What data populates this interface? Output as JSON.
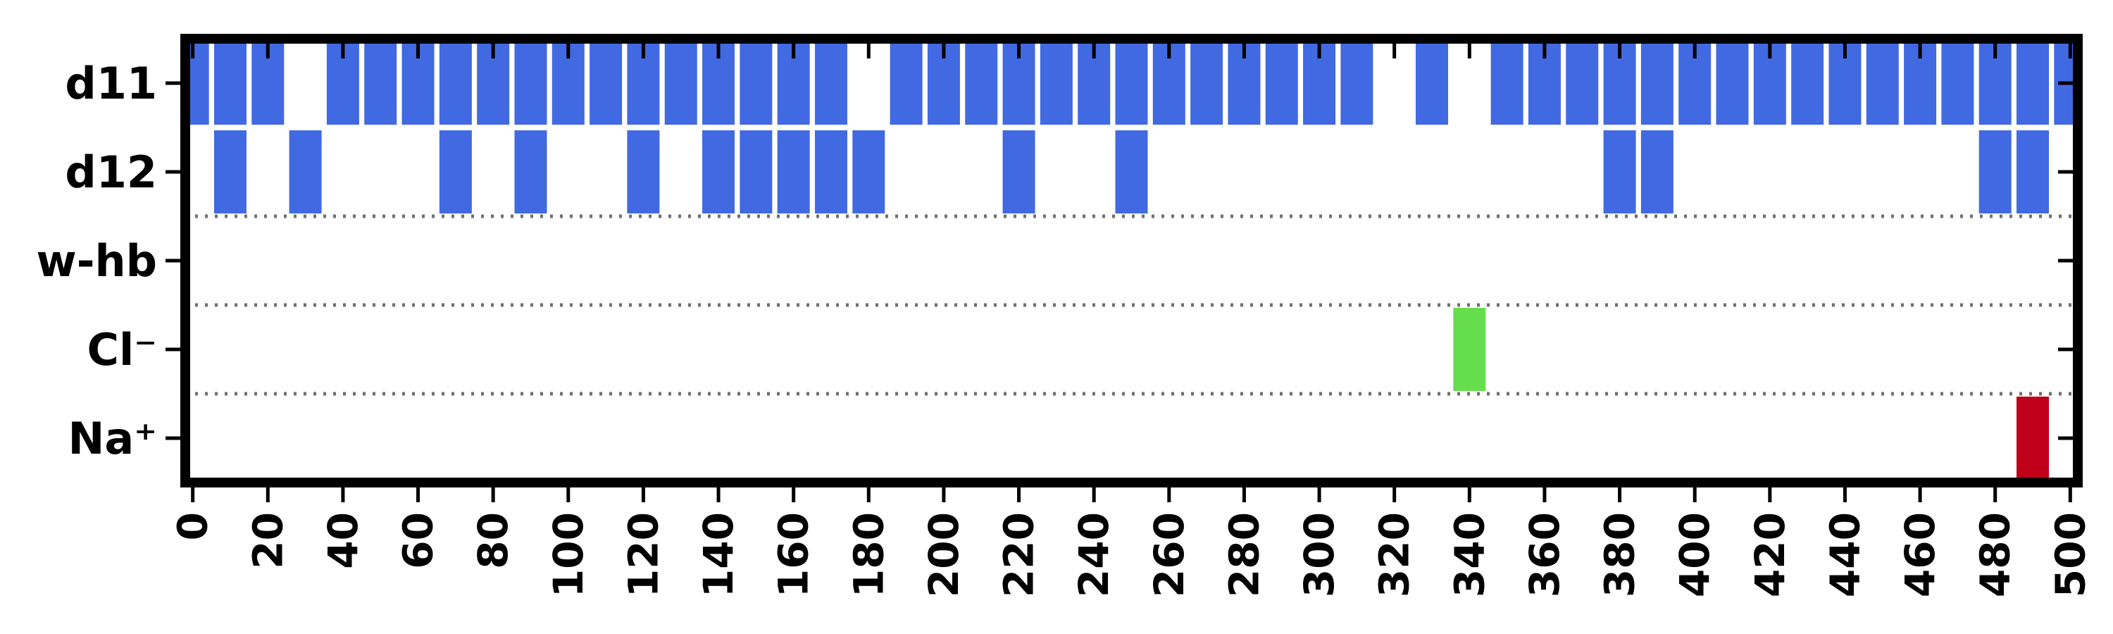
{
  "chart_data": {
    "type": "heatmap",
    "title": "",
    "xlabel": "",
    "ylabel": "",
    "xlim": [
      -2,
      502
    ],
    "x_ticks": [
      "0",
      "20",
      "40",
      "60",
      "80",
      "100",
      "120",
      "140",
      "160",
      "180",
      "200",
      "220",
      "240",
      "260",
      "280",
      "300",
      "320",
      "340",
      "360",
      "380",
      "400",
      "420",
      "440",
      "460",
      "480",
      "500"
    ],
    "rows": [
      "d11",
      "d12",
      "w-hb",
      "Cl⁻",
      "Na⁺"
    ],
    "row_separators_after": [
      1,
      2,
      3
    ],
    "grid": false,
    "legend": "none",
    "colors": {
      "hbond": "#4169e1",
      "water": "#4169e1",
      "chloride": "#66dd4c",
      "sodium": "#c00018",
      "separator": "#707070",
      "frame": "#000000"
    },
    "series": [
      {
        "name": "d11",
        "color_key": "hbond",
        "x": [
          0,
          10,
          20,
          40,
          50,
          60,
          70,
          80,
          90,
          100,
          110,
          120,
          130,
          140,
          150,
          160,
          170,
          190,
          200,
          210,
          220,
          230,
          240,
          250,
          260,
          270,
          280,
          290,
          300,
          310,
          330,
          350,
          360,
          370,
          380,
          390,
          400,
          410,
          420,
          430,
          440,
          450,
          460,
          470,
          480,
          490,
          500
        ]
      },
      {
        "name": "d12",
        "color_key": "hbond",
        "x": [
          10,
          30,
          70,
          90,
          120,
          140,
          150,
          160,
          170,
          180,
          220,
          250,
          380,
          390,
          480,
          490
        ]
      },
      {
        "name": "w-hb",
        "color_key": "water",
        "x": []
      },
      {
        "name": "Cl⁻",
        "color_key": "chloride",
        "x": [
          340
        ]
      },
      {
        "name": "Na⁺",
        "color_key": "sodium",
        "x": [
          490
        ]
      }
    ]
  }
}
